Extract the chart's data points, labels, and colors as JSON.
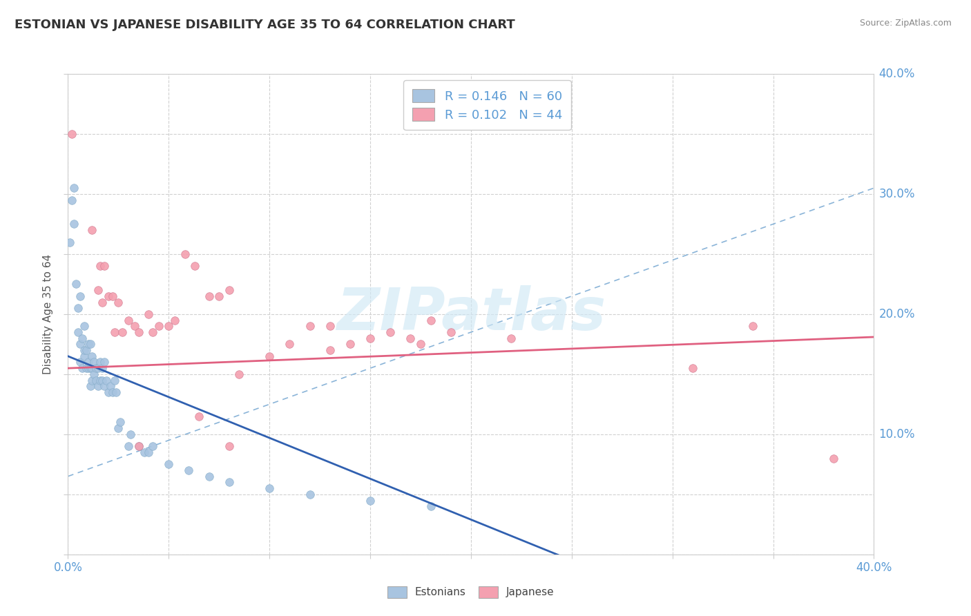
{
  "title": "ESTONIAN VS JAPANESE DISABILITY AGE 35 TO 64 CORRELATION CHART",
  "source_text": "Source: ZipAtlas.com",
  "ylabel": "Disability Age 35 to 64",
  "xlim": [
    0.0,
    0.4
  ],
  "ylim": [
    0.0,
    0.4
  ],
  "r_estonian": 0.146,
  "n_estonian": 60,
  "r_japanese": 0.102,
  "n_japanese": 44,
  "estonian_color": "#a8c4e0",
  "japanese_color": "#f4a0b0",
  "estonian_line_color": "#3060b0",
  "japanese_line_color": "#e06080",
  "dash_color": "#8ab4d8",
  "watermark_color": "#d0e8f5",
  "estonian_points": [
    [
      0.001,
      0.26
    ],
    [
      0.002,
      0.295
    ],
    [
      0.003,
      0.275
    ],
    [
      0.003,
      0.305
    ],
    [
      0.004,
      0.225
    ],
    [
      0.005,
      0.185
    ],
    [
      0.005,
      0.205
    ],
    [
      0.006,
      0.215
    ],
    [
      0.006,
      0.175
    ],
    [
      0.006,
      0.16
    ],
    [
      0.007,
      0.155
    ],
    [
      0.007,
      0.18
    ],
    [
      0.008,
      0.165
    ],
    [
      0.008,
      0.17
    ],
    [
      0.008,
      0.19
    ],
    [
      0.009,
      0.155
    ],
    [
      0.009,
      0.17
    ],
    [
      0.01,
      0.155
    ],
    [
      0.01,
      0.16
    ],
    [
      0.01,
      0.175
    ],
    [
      0.011,
      0.14
    ],
    [
      0.011,
      0.155
    ],
    [
      0.011,
      0.175
    ],
    [
      0.012,
      0.145
    ],
    [
      0.012,
      0.155
    ],
    [
      0.012,
      0.165
    ],
    [
      0.013,
      0.15
    ],
    [
      0.013,
      0.16
    ],
    [
      0.014,
      0.145
    ],
    [
      0.014,
      0.155
    ],
    [
      0.015,
      0.14
    ],
    [
      0.015,
      0.155
    ],
    [
      0.016,
      0.145
    ],
    [
      0.016,
      0.16
    ],
    [
      0.017,
      0.145
    ],
    [
      0.017,
      0.155
    ],
    [
      0.018,
      0.14
    ],
    [
      0.018,
      0.16
    ],
    [
      0.019,
      0.145
    ],
    [
      0.02,
      0.135
    ],
    [
      0.021,
      0.14
    ],
    [
      0.022,
      0.135
    ],
    [
      0.023,
      0.145
    ],
    [
      0.024,
      0.135
    ],
    [
      0.025,
      0.105
    ],
    [
      0.026,
      0.11
    ],
    [
      0.03,
      0.09
    ],
    [
      0.031,
      0.1
    ],
    [
      0.035,
      0.09
    ],
    [
      0.038,
      0.085
    ],
    [
      0.04,
      0.085
    ],
    [
      0.042,
      0.09
    ],
    [
      0.05,
      0.075
    ],
    [
      0.06,
      0.07
    ],
    [
      0.07,
      0.065
    ],
    [
      0.08,
      0.06
    ],
    [
      0.1,
      0.055
    ],
    [
      0.12,
      0.05
    ],
    [
      0.15,
      0.045
    ],
    [
      0.18,
      0.04
    ]
  ],
  "japanese_points": [
    [
      0.002,
      0.35
    ],
    [
      0.012,
      0.27
    ],
    [
      0.015,
      0.22
    ],
    [
      0.016,
      0.24
    ],
    [
      0.017,
      0.21
    ],
    [
      0.018,
      0.24
    ],
    [
      0.02,
      0.215
    ],
    [
      0.022,
      0.215
    ],
    [
      0.023,
      0.185
    ],
    [
      0.025,
      0.21
    ],
    [
      0.027,
      0.185
    ],
    [
      0.03,
      0.195
    ],
    [
      0.033,
      0.19
    ],
    [
      0.035,
      0.185
    ],
    [
      0.04,
      0.2
    ],
    [
      0.042,
      0.185
    ],
    [
      0.045,
      0.19
    ],
    [
      0.05,
      0.19
    ],
    [
      0.053,
      0.195
    ],
    [
      0.058,
      0.25
    ],
    [
      0.063,
      0.24
    ],
    [
      0.07,
      0.215
    ],
    [
      0.075,
      0.215
    ],
    [
      0.08,
      0.22
    ],
    [
      0.085,
      0.15
    ],
    [
      0.1,
      0.165
    ],
    [
      0.11,
      0.175
    ],
    [
      0.12,
      0.19
    ],
    [
      0.13,
      0.19
    ],
    [
      0.14,
      0.175
    ],
    [
      0.15,
      0.18
    ],
    [
      0.16,
      0.185
    ],
    [
      0.17,
      0.18
    ],
    [
      0.175,
      0.175
    ],
    [
      0.18,
      0.195
    ],
    [
      0.19,
      0.185
    ],
    [
      0.035,
      0.09
    ],
    [
      0.065,
      0.115
    ],
    [
      0.08,
      0.09
    ],
    [
      0.13,
      0.17
    ],
    [
      0.22,
      0.18
    ],
    [
      0.34,
      0.19
    ],
    [
      0.31,
      0.155
    ],
    [
      0.38,
      0.08
    ]
  ],
  "est_reg_intercept": 0.165,
  "est_reg_slope": -0.68,
  "jpn_reg_intercept": 0.155,
  "jpn_reg_slope": 0.065,
  "dash_intercept": 0.065,
  "dash_slope": 0.6
}
